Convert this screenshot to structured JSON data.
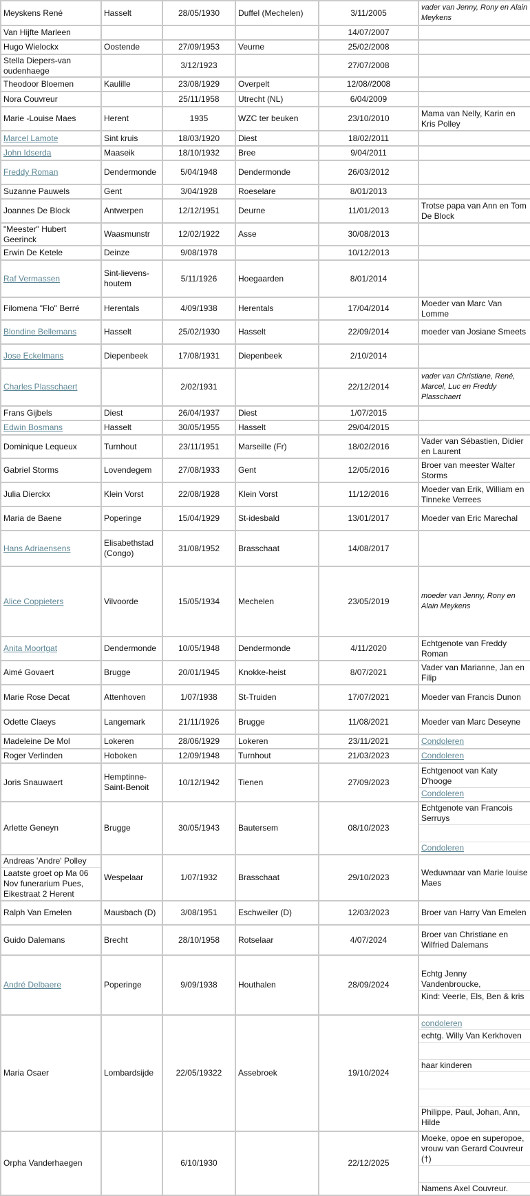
{
  "colors": {
    "link": "#5d8796",
    "border": "#c9c9c9"
  },
  "rows": [
    {
      "name": "Meyskens René",
      "birthplace": "Hasselt",
      "born": "28/05/1930",
      "deathplace": "Duffel (Mechelen)",
      "died": "3/11/2005",
      "notes": [
        {
          "text": "vader van Jenny, Rony en Alain Meykens",
          "italic": true
        }
      ]
    },
    {
      "name": "Van Hijfte Marleen",
      "birthplace": "",
      "born": "",
      "deathplace": "",
      "died": "14/07/2007",
      "notes": []
    },
    {
      "name": "Hugo Wielockx",
      "birthplace": "Oostende",
      "born": "27/09/1953",
      "deathplace": "Veurne",
      "died": "25/02/2008",
      "notes": []
    },
    {
      "name": "Stella Diepers-van oudenhaege",
      "birthplace": "",
      "born": "3/12/1923",
      "deathplace": "",
      "died": "27/07/2008",
      "notes": []
    },
    {
      "name": "Theodoor Bloemen",
      "birthplace": "Kaulille",
      "born": "23/08/1929",
      "deathplace": "Overpelt",
      "died": "12/08//2008",
      "notes": []
    },
    {
      "name": "Nora Couvreur",
      "birthplace": "",
      "born": "25/11/1958",
      "deathplace": "Utrecht (NL)",
      "died": "6/04/2009",
      "notes": []
    },
    {
      "name": "Marie -Louise Maes",
      "birthplace": "Herent",
      "born": "1935",
      "deathplace": "WZC ter beuken",
      "died": "23/10/2010",
      "notes": [
        {
          "text": "Mama van Nelly, Karin en Kris Polley"
        }
      ]
    },
    {
      "name": "Marcel Lamote",
      "link": true,
      "birthplace": "Sint kruis",
      "born": "18/03/1920",
      "deathplace": "Diest",
      "died": "18/02/2011",
      "notes": []
    },
    {
      "name": "John Idserda",
      "link": true,
      "birthplace": "Maaseik",
      "born": "18/10/1932",
      "deathplace": "Bree",
      "died": "9/04/2011",
      "notes": []
    },
    {
      "name": "Freddy Roman",
      "link": true,
      "birthplace": "Dendermonde",
      "born": "5/04/1948",
      "deathplace": "Dendermonde",
      "died": "26/03/2012",
      "notes": []
    },
    {
      "name": "Suzanne Pauwels",
      "birthplace": "Gent",
      "born": "3/04/1928",
      "deathplace": "Roeselare",
      "died": "8/01/2013",
      "notes": []
    },
    {
      "name": "Joannes De Block",
      "birthplace": "Antwerpen",
      "born": "12/12/1951",
      "deathplace": "Deurne",
      "died": "11/01/2013",
      "notes": [
        {
          "text": "Trotse papa van Ann en Tom De Block"
        }
      ]
    },
    {
      "name": "\"Meester\" Hubert Geerinck",
      "birthplace": "Waasmunstr",
      "born": "12/02/1922",
      "deathplace": "Asse",
      "died": "30/08/2013",
      "notes": []
    },
    {
      "name": "Erwin De Ketele",
      "birthplace": "Deinze",
      "born": "9/08/1978",
      "deathplace": "",
      "died": "10/12/2013",
      "notes": []
    },
    {
      "name": "Raf Vermassen",
      "link": true,
      "birthplace": "Sint-lievens-houtem",
      "born": "5/11/1926",
      "deathplace": "Hoegaarden",
      "died": "8/01/2014",
      "notes": []
    },
    {
      "name": "Filomena \"Flo\" Berré",
      "birthplace": "Herentals",
      "born": "4/09/1938",
      "deathplace": "Herentals",
      "died": "17/04/2014",
      "notes": [
        {
          "text": "Moeder van Marc Van Lomme"
        }
      ]
    },
    {
      "name": "Blondine Bellemans",
      "link": true,
      "birthplace": "Hasselt",
      "born": "25/02/1930",
      "deathplace": "Hasselt",
      "died": "22/09/2014",
      "notes": [
        {
          "text": "moeder van Josiane Smeets"
        }
      ]
    },
    {
      "name": "Jose Eckelmans",
      "link": true,
      "birthplace": "Diepenbeek",
      "born": "17/08/1931",
      "deathplace": "Diepenbeek",
      "died": "2/10/2014",
      "notes": []
    },
    {
      "name": "Charles Plasschaert",
      "link": true,
      "birthplace": "",
      "born": "2/02/1931",
      "deathplace": "",
      "died": "22/12/2014",
      "notes": [
        {
          "text": "vader van Christiane, René, Marcel, Luc en Freddy Plasschaert",
          "italic": true
        }
      ]
    },
    {
      "name": "Frans Gijbels",
      "birthplace": "Diest",
      "born": "26/04/1937",
      "deathplace": "Diest",
      "died": "1/07/2015",
      "notes": []
    },
    {
      "name": "Edwin Bosmans",
      "link": true,
      "birthplace": "Hasselt",
      "born": "30/05/1955",
      "deathplace": "Hasselt",
      "died": "29/04/2015",
      "notes": []
    },
    {
      "name": "Dominique Lequeux",
      "birthplace": "Turnhout",
      "born": "23/11/1951",
      "deathplace": "Marseille (Fr)",
      "died": "18/02/2016",
      "notes": [
        {
          "text": "Vader van Sébastien, Didier en Laurent"
        }
      ]
    },
    {
      "name": "Gabriel Storms",
      "birthplace": "Lovendegem",
      "born": "27/08/1933",
      "deathplace": "Gent",
      "died": "12/05/2016",
      "notes": [
        {
          "text": "Broer van meester Walter Storms"
        }
      ]
    },
    {
      "name": "Julia Dierckx",
      "birthplace": "Klein Vorst",
      "born": "22/08/1928",
      "deathplace": "Klein Vorst",
      "died": "11/12/2016",
      "notes": [
        {
          "text": "Moeder van Erik, William en Tinneke Verrees"
        }
      ]
    },
    {
      "name": "Maria de Baene",
      "birthplace": "Poperinge",
      "born": "15/04/1929",
      "deathplace": "St-idesbald",
      "died": "13/01/2017",
      "notes": [
        {
          "text": "Moeder van Eric Marechal"
        }
      ]
    },
    {
      "name": "Hans Adriaensens",
      "link": true,
      "birthplace": "Elisabethstad (Congo)",
      "born": "31/08/1952",
      "deathplace": "Brasschaat",
      "died": "14/08/2017",
      "notes": []
    },
    {
      "name": "Alice Coppieters",
      "link": true,
      "birthplace": "Vilvoorde",
      "born": "15/05/1934",
      "deathplace": "Mechelen",
      "died": "23/05/2019",
      "notes": [
        {
          "text": "moeder van Jenny, Rony en Alain Meykens",
          "italic": true
        }
      ]
    },
    {
      "name": "Anita Moortgat",
      "link": true,
      "birthplace": "Dendermonde",
      "born": "10/05/1948",
      "deathplace": "Dendermonde",
      "died": "4/11/2020",
      "notes": [
        {
          "text": "Echtgenote van Freddy Roman"
        }
      ]
    },
    {
      "name": "Aimé Govaert",
      "birthplace": "Brugge",
      "born": "20/01/1945",
      "deathplace": "Knokke-heist",
      "died": "8/07/2021",
      "notes": [
        {
          "text": "Vader van Marianne, Jan en Filip"
        }
      ]
    },
    {
      "name": "Marie Rose Decat",
      "birthplace": "Attenhoven",
      "born": "1/07/1938",
      "deathplace": "St-Truiden",
      "died": "17/07/2021",
      "notes": [
        {
          "text": "Moeder van Francis Dunon"
        }
      ]
    },
    {
      "name": "Odette Claeys",
      "birthplace": "Langemark",
      "born": "21/11/1926",
      "deathplace": "Brugge",
      "died": "11/08/2021",
      "notes": [
        {
          "text": "Moeder van Marc Deseyne"
        }
      ]
    },
    {
      "name": "Madeleine De Mol",
      "birthplace": "Lokeren",
      "born": "28/06/1929",
      "deathplace": "Lokeren",
      "died": "23/11/2021",
      "notes": [
        {
          "text": "Condoleren",
          "link": true
        }
      ]
    },
    {
      "name": "Roger Verlinden",
      "birthplace": "Hoboken",
      "born": "12/09/1948",
      "deathplace": "Turnhout",
      "died": "21/03/2023",
      "notes": [
        {
          "text": "Condoleren",
          "link": true
        }
      ]
    },
    {
      "name": "Joris Snauwaert",
      "birthplace": "Hemptinne-Saint-Benoit",
      "born": "10/12/1942",
      "deathplace": "Tienen",
      "died": "27/09/2023",
      "notes": [
        {
          "text": "Echtgenoot van Katy D'hooge"
        },
        {
          "text": "Condoleren",
          "link": true
        }
      ]
    },
    {
      "name": "Arlette Geneyn",
      "birthplace": "Brugge",
      "born": "30/05/1943",
      "deathplace": "Bautersem",
      "died": "08/10/2023",
      "notes": [
        {
          "text": "Echtgenote van Francois Serruys"
        },
        {
          "text": ""
        },
        {
          "text": "Condoleren",
          "link": true
        }
      ]
    },
    {
      "name": "Andreas 'Andre' Polley",
      "name_extra": "Laatste groet op Ma 06 Nov funerarium Pues, Eikestraat 2 Herent",
      "birthplace": "Wespelaar",
      "born": "1/07/1932",
      "deathplace": "Brasschaat",
      "died": "29/10/2023",
      "notes": [
        {
          "text": "Weduwnaar van Marie louise Maes"
        }
      ]
    },
    {
      "name": "Ralph Van Emelen",
      "birthplace": "Mausbach (D)",
      "born": "3/08/1951",
      "deathplace": "Eschweiler (D)",
      "died": "12/03/2023",
      "notes": [
        {
          "text": "Broer van Harry Van Emelen"
        }
      ]
    },
    {
      "name": "Guido Dalemans",
      "birthplace": "Brecht",
      "born": "28/10/1958",
      "deathplace": "Rotselaar",
      "died": "4/07/2024",
      "notes": [
        {
          "text": "Broer van Christiane en Wilfried Dalemans"
        }
      ]
    },
    {
      "name": "André Delbaere",
      "link": true,
      "birthplace": "Poperinge",
      "born": "9/09/1938",
      "deathplace": "Houthalen",
      "died": "28/09/2024",
      "notes": [
        {
          "text": "Echtg Jenny Vandenbroucke,"
        },
        {
          "text": "Kind: Veerle, Els, Ben & kris"
        }
      ]
    },
    {
      "name": "Maria Osaer",
      "birthplace": "Lombardsijde",
      "born": "22/05/19322",
      "deathplace": "Assebroek",
      "died": "19/10/2024",
      "notes": [
        {
          "text": "condoleren",
          "link": true
        },
        {
          "text": "echtg. Willy Van Kerkhoven"
        },
        {
          "text": ""
        },
        {
          "text": "haar kinderen"
        },
        {
          "text": ""
        },
        {
          "text": ""
        },
        {
          "text": "Philippe, Paul, Johan, Ann, Hilde"
        }
      ]
    },
    {
      "name": "Orpha Vanderhaegen",
      "birthplace": "",
      "born": "6/10/1930",
      "deathplace": "",
      "died": "22/12/2025",
      "notes": [
        {
          "text": "Moeke, opoe en superopoe, vrouw van Gerard Couvreur (†)"
        },
        {
          "text": ""
        },
        {
          "text": "Namens Axel Couvreur."
        }
      ]
    }
  ]
}
